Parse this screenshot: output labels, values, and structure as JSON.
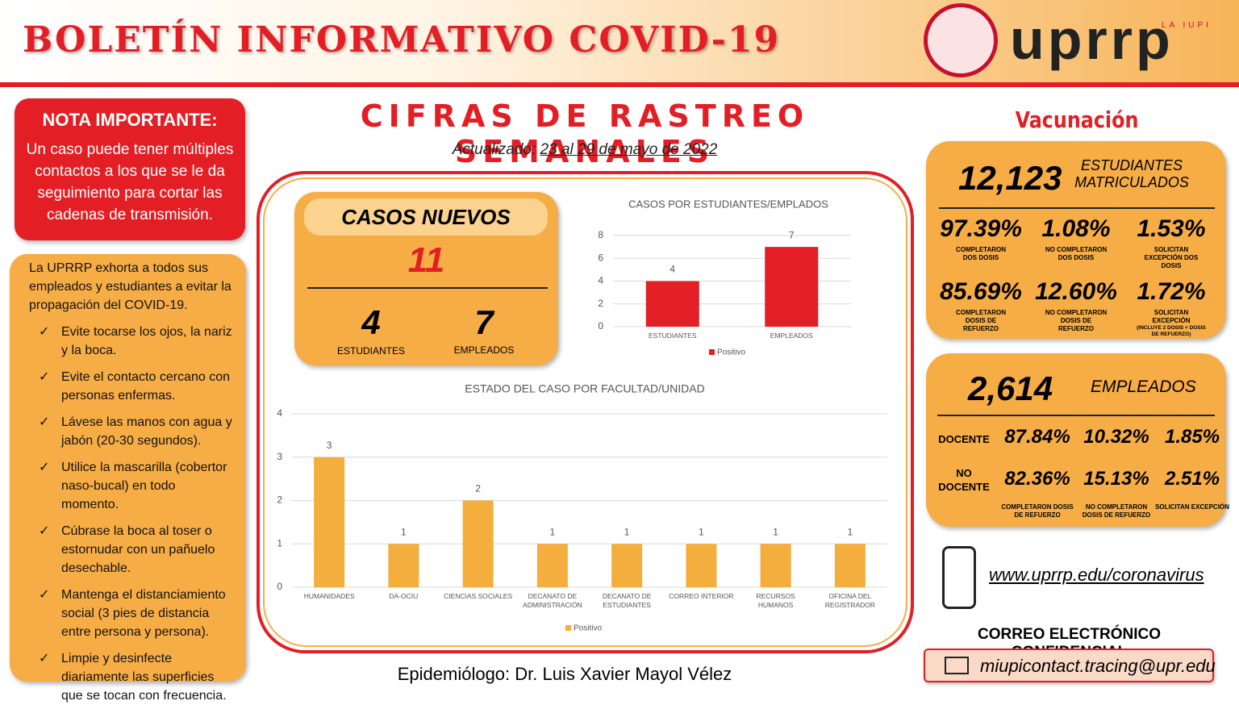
{
  "header": {
    "title": "BOLETÍN INFORMATIVO COVID-19",
    "logo_text": "uprrp",
    "logo_tag": "LA IUPI"
  },
  "nota": {
    "title": "NOTA IMPORTANTE:",
    "text": "Un caso puede tener múltiples contactos a los que se le da seguimiento para cortar las cadenas de transmisión."
  },
  "advice": {
    "intro": "La UPRRP exhorta a todos sus empleados y estudiantes a evitar la propagación del COVID-19.",
    "items": [
      "Evite tocarse los ojos, la nariz y la boca.",
      "Evite el contacto cercano con personas enfermas.",
      "Lávese las manos con agua y jabón (20-30 segundos).",
      "Utilice la mascarilla (cobertor naso-bucal) en todo momento.",
      "Cúbrase la boca al toser o estornudar con un pañuelo desechable.",
      "Mantenga el distanciamiento social (3 pies de distancia entre persona y persona).",
      "Limpie y desinfecte diariamente las superficies que se tocan con frecuencia."
    ]
  },
  "center": {
    "heading": "CIFRAS DE RASTREO SEMANALES",
    "updated_label": "Actualizado:",
    "updated_date": "23 al 29 de mayo de 2022"
  },
  "casos": {
    "title": "CASOS NUEVOS",
    "total": "11",
    "students": "4",
    "students_label": "ESTUDIANTES",
    "employees": "7",
    "employees_label": "EMPLEADOS"
  },
  "chart_data": [
    {
      "type": "bar",
      "title": "CASOS POR ESTUDIANTES/EMPLADOS",
      "categories": [
        "ESTUDIANTES",
        "EMPLEADOS"
      ],
      "series": [
        {
          "name": "Positivo",
          "color": "#e31e24",
          "values": [
            4,
            7
          ]
        }
      ],
      "ylim": [
        0,
        8
      ],
      "yticks": [
        0,
        2,
        4,
        6,
        8
      ],
      "grid": true
    },
    {
      "type": "bar",
      "title": "ESTADO DEL CASO POR FACULTAD/UNIDAD",
      "categories": [
        "HUMANIDADES",
        "DA-OCIU",
        "CIENCIAS SOCIALES",
        "DECANATO DE ADMINISTRACIÓN",
        "DECANATO DE ESTUDIANTES",
        "CORREO INTERIOR",
        "RECURSOS HUMANOS",
        "OFICINA DEL REGISTRADOR"
      ],
      "series": [
        {
          "name": "Positivo",
          "color": "#f4ae3d",
          "values": [
            3,
            1,
            2,
            1,
            1,
            1,
            1,
            1
          ]
        }
      ],
      "ylim": [
        0,
        4
      ],
      "yticks": [
        0,
        1,
        2,
        3,
        4
      ],
      "grid": true
    }
  ],
  "vacunacion": {
    "title": "Vacunación",
    "students": {
      "count": "12,123",
      "label": "ESTUDIANTES MATRICULADOS",
      "stats": [
        {
          "value": "97.39%",
          "label": "COMPLETARON DOS DOSIS"
        },
        {
          "value": "1.08%",
          "label": "NO COMPLETARON DOS DOSIS"
        },
        {
          "value": "1.53%",
          "label": "SOLICITAN EXCEPCIÓN DOS DOSIS"
        },
        {
          "value": "85.69%",
          "label": "COMPLETARON DOSIS DE REFUERZO"
        },
        {
          "value": "12.60%",
          "label": "NO COMPLETARON DOSIS DE REFUERZO"
        },
        {
          "value": "1.72%",
          "label": "SOLICITAN EXCEPCIÓN",
          "note": "(INCLUYE 2 DOSIS + DOSIS DE REFUERZO)"
        }
      ]
    },
    "employees": {
      "count": "2,614",
      "label": "EMPLEADOS",
      "rows": [
        {
          "name": "DOCENTE",
          "values": [
            "87.84%",
            "10.32%",
            "1.85%"
          ]
        },
        {
          "name": "NO DOCENTE",
          "values": [
            "82.36%",
            "15.13%",
            "2.51%"
          ]
        }
      ],
      "columns": [
        "COMPLETARON DOSIS DE REFUERZO",
        "NO COMPLETARON DOSIS DE REFUERZO",
        "SOLICITAN EXCEPCIÓN"
      ]
    }
  },
  "contact": {
    "url": "www.uprrp.edu/coronavirus",
    "email_heading": "CORREO ELECTRÓNICO CONFIDENCIAL",
    "email": "miupicontact.tracing@upr.edu"
  },
  "footer": {
    "text": "Epidemiólogo: Dr. Luis Xavier Mayol Vélez"
  }
}
